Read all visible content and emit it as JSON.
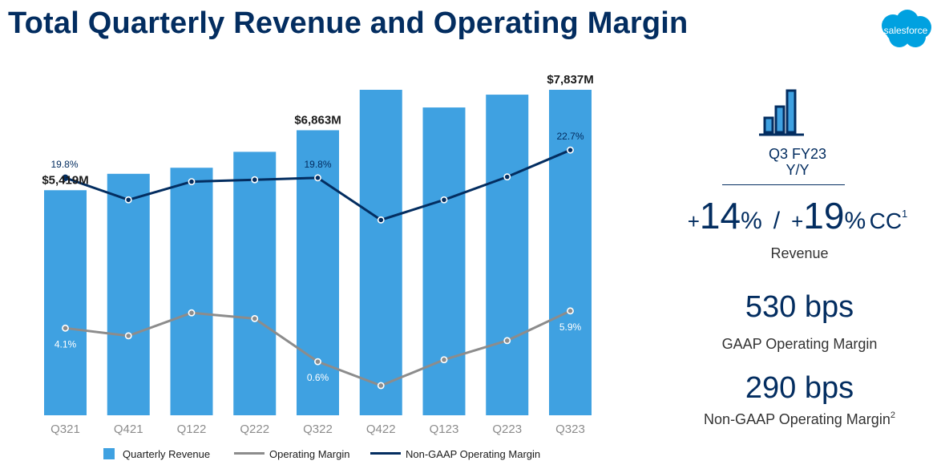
{
  "title": "Total Quarterly Revenue and Operating Margin",
  "logo_text": "salesforce",
  "colors": {
    "bar": "#3fa1e1",
    "gaap_line": "#8c8c8c",
    "nongaap_line": "#032d60",
    "title": "#032d60"
  },
  "chart_data": {
    "type": "bar",
    "categories": [
      "Q321",
      "Q421",
      "Q122",
      "Q222",
      "Q322",
      "Q422",
      "Q123",
      "Q223",
      "Q323"
    ],
    "revenue_range": [
      0,
      8000
    ],
    "margin_range": [
      -5,
      30
    ],
    "series": [
      {
        "name": "Quarterly Revenue",
        "type": "bar",
        "axis": "left",
        "unit": "$M",
        "values": [
          5419,
          5814,
          5960,
          6343,
          6863,
          7837,
          7411,
          7720,
          7837
        ],
        "labels": [
          "$5,419M",
          "",
          "",
          "",
          "$6,863M",
          "",
          "",
          "",
          "$7,837M"
        ]
      },
      {
        "name": "Operating Margin",
        "type": "line",
        "axis": "right",
        "unit": "%",
        "values": [
          4.1,
          3.3,
          5.7,
          5.1,
          0.6,
          -1.9,
          0.8,
          2.8,
          5.9
        ],
        "labels": [
          "4.1%",
          "",
          "",
          "",
          "0.6%",
          "",
          "",
          "",
          "5.9%"
        ]
      },
      {
        "name": "Non-GAAP Operating Margin",
        "type": "line",
        "axis": "right",
        "unit": "%",
        "values": [
          19.8,
          17.5,
          19.4,
          19.6,
          19.8,
          15.4,
          17.5,
          19.9,
          22.7
        ],
        "labels": [
          "19.8%",
          "",
          "",
          "",
          "19.8%",
          "",
          "",
          "",
          "22.7%"
        ]
      }
    ]
  },
  "legend": {
    "revenue": "Quarterly Revenue",
    "gaap": "Operating Margin",
    "nongaap": "Non-GAAP Operating Margin"
  },
  "summary": {
    "period_line1": "Q3 FY23",
    "period_line2": "Y/Y",
    "rev_prefix": "+",
    "rev_value": "14",
    "rev_pct": "%",
    "slash": "/",
    "rev_cc_prefix": "+",
    "rev_cc_value": "19",
    "rev_cc_pct": "%",
    "cc_label": "CC",
    "cc_footnote": "1",
    "revenue_label": "Revenue",
    "gaap_bps": "530 bps",
    "gaap_label": "GAAP Operating Margin",
    "nongaap_bps": "290 bps",
    "nongaap_label": "Non-GAAP Operating Margin",
    "nongaap_footnote": "2"
  }
}
